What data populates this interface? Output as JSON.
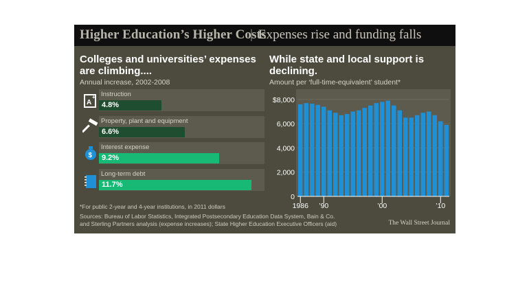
{
  "header": {
    "title": "Higher Education’s Higher Costs",
    "separator": "|",
    "subtitle": "Expenses rise and funding falls"
  },
  "left_panel": {
    "title": "Colleges and universities’ expenses are climbing....",
    "subtitle": "Annual increase, 2002-2008"
  },
  "right_panel": {
    "title": "While state and local support is declining.",
    "subtitle": "Amount per ‘full-time-equivalent’ student*"
  },
  "footnote": "*For public 2-year and 4-year institutions, in 2011 dollars",
  "sources_line1": "Sources: Bureau of Labor Statistics, Integrated Postsecondary Education Data System, Bain & Co.",
  "sources_line2": "and Sterling Partners analysis (expense increases); State Higher Education Executive Officers (aid)",
  "credit": "The Wall Street Journal",
  "colors": {
    "background": "#4c4b3e",
    "header_bg": "#0f0f0f",
    "bar_dark": "#1f4d2f",
    "bar_bright": "#18b974",
    "area_blue": "#1f8fd6"
  },
  "chart_data": [
    {
      "type": "bar",
      "orientation": "horizontal",
      "title": "Colleges and universities’ expenses are climbing....",
      "subtitle": "Annual increase, 2002-2008",
      "categories": [
        "Instruction",
        "Property, plant and equipment",
        "Interest expense",
        "Long-term debt"
      ],
      "values": [
        4.8,
        6.6,
        9.2,
        11.7
      ],
      "value_labels": [
        "4.8%",
        "6.6%",
        "9.2%",
        "11.7%"
      ],
      "xlim": [
        0,
        12
      ],
      "icons": [
        "instruction-icon",
        "hammer-icon",
        "money-bag-icon",
        "debt-book-icon"
      ]
    },
    {
      "type": "bar",
      "title": "While state and local support is declining.",
      "subtitle": "Amount per ‘full-time-equivalent’ student*",
      "x": [
        1986,
        1987,
        1988,
        1989,
        1990,
        1991,
        1992,
        1993,
        1994,
        1995,
        1996,
        1997,
        1998,
        1999,
        2000,
        2001,
        2002,
        2003,
        2004,
        2005,
        2006,
        2007,
        2008,
        2009,
        2010,
        2011
      ],
      "values": [
        7600,
        7700,
        7650,
        7550,
        7400,
        7100,
        6900,
        6700,
        6800,
        7000,
        7100,
        7300,
        7500,
        7700,
        7800,
        7900,
        7500,
        7100,
        6500,
        6500,
        6700,
        6900,
        7000,
        6700,
        6200,
        5900
      ],
      "ylim": [
        0,
        8500
      ],
      "yticks": [
        0,
        2000,
        4000,
        6000,
        8000
      ],
      "ytick_labels": [
        "0",
        "2,000",
        "4,000",
        "6,000",
        "$8,000"
      ],
      "xtick_labels": [
        "1986",
        "’90",
        "’00",
        "’10"
      ],
      "xtick_years": [
        1986,
        1990,
        2000,
        2010
      ]
    }
  ]
}
